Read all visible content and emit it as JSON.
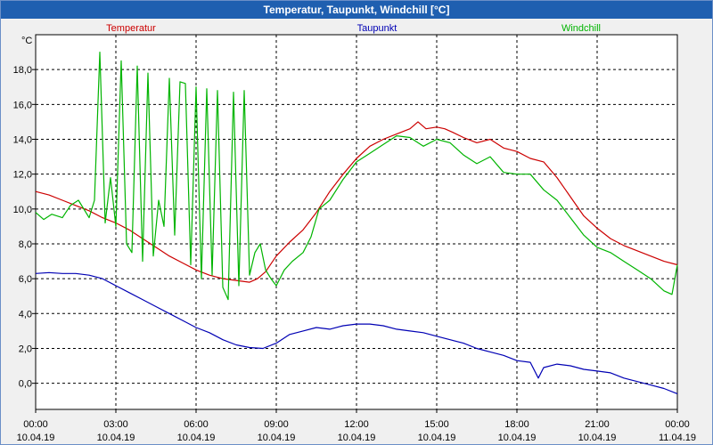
{
  "window_title": "Temperatur, Taupunkt, Windchill [°C]",
  "chart_data": {
    "type": "line",
    "title": "Temperatur, Taupunkt, Windchill [°C]",
    "y_unit": "°C",
    "ylim": [
      -1.5,
      20.0
    ],
    "yticks": [
      0.0,
      2.0,
      4.0,
      6.0,
      8.0,
      10.0,
      12.0,
      14.0,
      16.0,
      18.0
    ],
    "ytick_labels": [
      "0,0",
      "2,0",
      "4,0",
      "6,0",
      "8,0",
      "10,0",
      "12,0",
      "14,0",
      "16,0",
      "18,0"
    ],
    "xlim": [
      0,
      24
    ],
    "xticks": [
      0,
      3,
      6,
      9,
      12,
      15,
      18,
      21,
      24
    ],
    "xtick_labels": [
      [
        "00:00",
        "10.04.19"
      ],
      [
        "03:00",
        "10.04.19"
      ],
      [
        "06:00",
        "10.04.19"
      ],
      [
        "09:00",
        "10.04.19"
      ],
      [
        "12:00",
        "10.04.19"
      ],
      [
        "15:00",
        "10.04.19"
      ],
      [
        "18:00",
        "10.04.19"
      ],
      [
        "21:00",
        "10.04.19"
      ],
      [
        "00:00",
        "11.04.19"
      ]
    ],
    "grid": true,
    "series": [
      {
        "name": "Temperatur",
        "color": "#cc0000",
        "x": [
          0,
          0.5,
          1,
          1.5,
          2,
          2.5,
          3,
          3.5,
          4,
          4.5,
          5,
          5.5,
          6,
          6.5,
          7,
          7.5,
          8,
          8.3,
          8.6,
          9,
          9.5,
          10,
          10.5,
          11,
          11.5,
          12,
          12.5,
          13,
          13.5,
          14,
          14.3,
          14.6,
          15,
          15.3,
          15.6,
          16,
          16.5,
          17,
          17.5,
          18,
          18.5,
          19,
          19.5,
          20,
          20.5,
          21,
          21.5,
          22,
          22.5,
          23,
          23.5,
          24
        ],
        "values": [
          11.0,
          10.8,
          10.5,
          10.2,
          9.9,
          9.5,
          9.2,
          8.8,
          8.3,
          7.8,
          7.3,
          6.9,
          6.5,
          6.2,
          6.0,
          5.9,
          5.8,
          6.0,
          6.4,
          7.3,
          8.1,
          8.8,
          9.8,
          11.0,
          12.0,
          12.9,
          13.6,
          14.0,
          14.3,
          14.6,
          15.0,
          14.6,
          14.7,
          14.6,
          14.4,
          14.1,
          13.8,
          14.0,
          13.5,
          13.3,
          12.9,
          12.7,
          11.8,
          10.7,
          9.6,
          8.9,
          8.3,
          7.9,
          7.6,
          7.3,
          7.0,
          6.8
        ]
      },
      {
        "name": "Taupunkt",
        "color": "#0000b4",
        "x": [
          0,
          0.5,
          1,
          1.5,
          2,
          2.5,
          3,
          3.5,
          4,
          4.5,
          5,
          5.5,
          6,
          6.5,
          7,
          7.5,
          8,
          8.5,
          9,
          9.5,
          10,
          10.5,
          11,
          11.5,
          12,
          12.5,
          13,
          13.5,
          14,
          14.5,
          15,
          15.5,
          16,
          16.5,
          17,
          17.5,
          18,
          18.5,
          18.8,
          19,
          19.5,
          20,
          20.5,
          21,
          21.5,
          22,
          22.5,
          23,
          23.5,
          24
        ],
        "values": [
          6.3,
          6.35,
          6.3,
          6.3,
          6.2,
          6.0,
          5.6,
          5.2,
          4.8,
          4.4,
          4.0,
          3.6,
          3.2,
          2.9,
          2.5,
          2.2,
          2.05,
          2.0,
          2.3,
          2.8,
          3.0,
          3.2,
          3.1,
          3.3,
          3.4,
          3.4,
          3.3,
          3.1,
          3.0,
          2.9,
          2.7,
          2.5,
          2.3,
          2.0,
          1.8,
          1.6,
          1.3,
          1.2,
          0.3,
          0.9,
          1.1,
          1.0,
          0.8,
          0.7,
          0.6,
          0.3,
          0.1,
          -0.1,
          -0.3,
          -0.6
        ]
      },
      {
        "name": "Windchill",
        "color": "#00b400",
        "x": [
          0,
          0.3,
          0.6,
          1,
          1.3,
          1.6,
          2,
          2.2,
          2.4,
          2.6,
          2.8,
          3,
          3.2,
          3.4,
          3.6,
          3.8,
          4,
          4.2,
          4.4,
          4.6,
          4.8,
          5,
          5.2,
          5.4,
          5.6,
          5.8,
          6,
          6.2,
          6.4,
          6.6,
          6.8,
          7,
          7.2,
          7.4,
          7.6,
          7.8,
          8,
          8.2,
          8.4,
          8.6,
          8.8,
          9,
          9.3,
          9.6,
          10,
          10.3,
          10.6,
          11,
          11.5,
          12,
          12.5,
          13,
          13.5,
          14,
          14.5,
          15,
          15.5,
          16,
          16.5,
          17,
          17.5,
          18,
          18.5,
          19,
          19.5,
          20,
          20.5,
          21,
          21.5,
          22,
          22.5,
          23,
          23.5,
          23.8,
          24
        ],
        "values": [
          9.8,
          9.4,
          9.7,
          9.5,
          10.2,
          10.5,
          9.5,
          10.5,
          19.0,
          9.2,
          11.8,
          9.0,
          18.5,
          8.0,
          7.5,
          18.2,
          7.0,
          17.8,
          7.3,
          10.5,
          9.0,
          17.5,
          8.5,
          17.3,
          17.2,
          6.8,
          17.0,
          6.0,
          16.9,
          6.2,
          16.8,
          5.5,
          4.8,
          16.7,
          5.6,
          16.8,
          6.2,
          7.5,
          8.0,
          6.5,
          6.0,
          5.6,
          6.5,
          7.0,
          7.5,
          8.4,
          10.0,
          10.5,
          11.7,
          12.7,
          13.2,
          13.7,
          14.2,
          14.1,
          13.6,
          14.0,
          13.8,
          13.1,
          12.6,
          13.0,
          12.1,
          12.0,
          12.0,
          11.1,
          10.5,
          9.5,
          8.5,
          7.8,
          7.5,
          7.0,
          6.5,
          6.0,
          5.3,
          5.1,
          6.8
        ]
      }
    ]
  }
}
